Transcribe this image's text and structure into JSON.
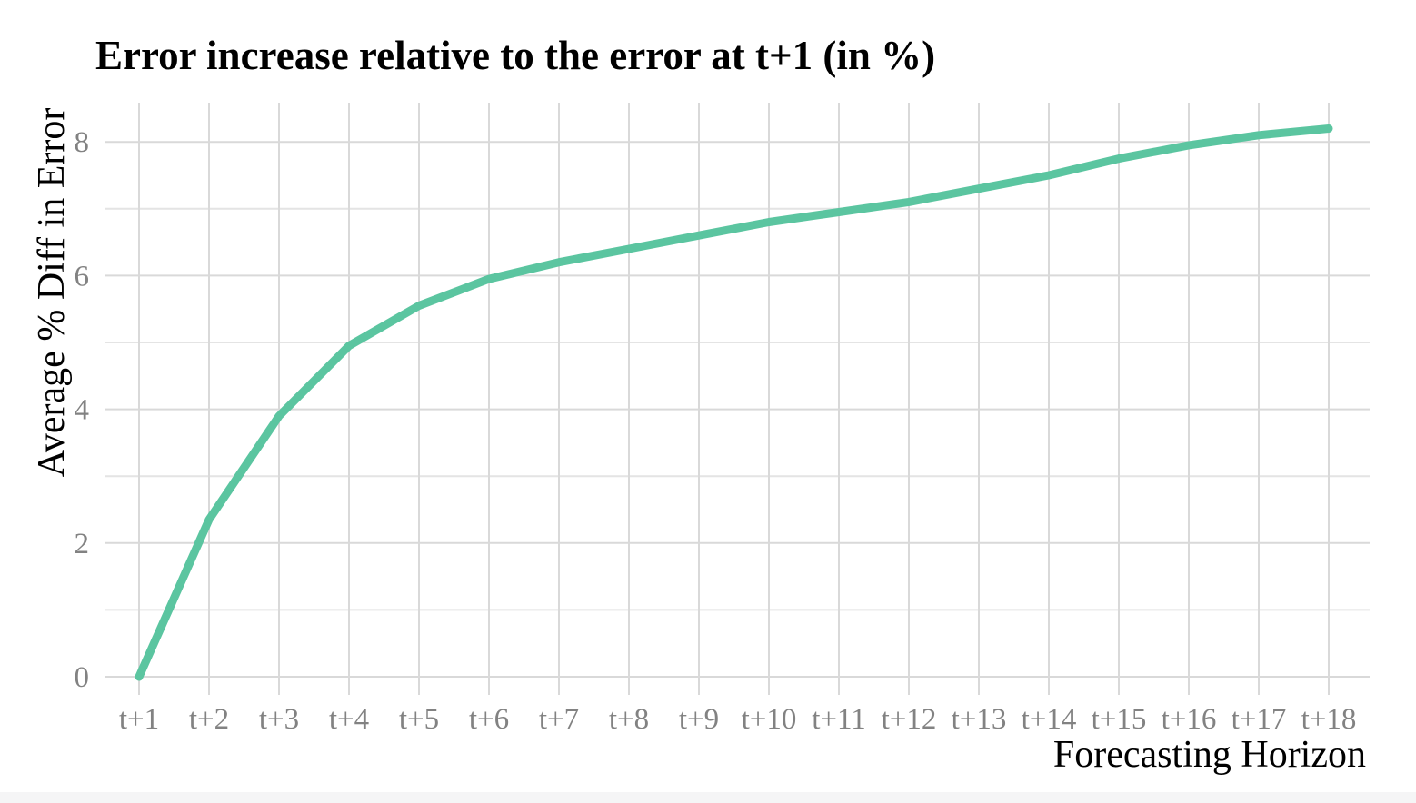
{
  "chart_data": {
    "type": "line",
    "title": "Error increase relative to the error at t+1 (in %)",
    "xlabel": "Forecasting Horizon",
    "ylabel": "Average % Diff in Error",
    "categories": [
      "t+1",
      "t+2",
      "t+3",
      "t+4",
      "t+5",
      "t+6",
      "t+7",
      "t+8",
      "t+9",
      "t+10",
      "t+11",
      "t+12",
      "t+13",
      "t+14",
      "t+15",
      "t+16",
      "t+17",
      "t+18"
    ],
    "series": [
      {
        "name": "average-percent-diff-in-error",
        "values": [
          0,
          2.35,
          3.9,
          4.95,
          5.55,
          5.95,
          6.2,
          6.4,
          6.6,
          6.8,
          6.95,
          7.1,
          7.3,
          7.5,
          7.75,
          7.95,
          8.1,
          8.2
        ]
      }
    ],
    "y_ticks": [
      0,
      2,
      4,
      6,
      8
    ],
    "y_minor_ticks": [
      1,
      3,
      5,
      7
    ],
    "ylim": [
      0,
      8.6
    ],
    "grid": "on",
    "legend": "none",
    "colors": {
      "line": "#5bc5a0",
      "major_grid": "#d9d9d9",
      "minor_grid": "#e4e4e4",
      "tick_text": "#828282",
      "title_text": "#000000",
      "bottom_bar": "#f5f5f6",
      "background": "#ffffff"
    }
  }
}
